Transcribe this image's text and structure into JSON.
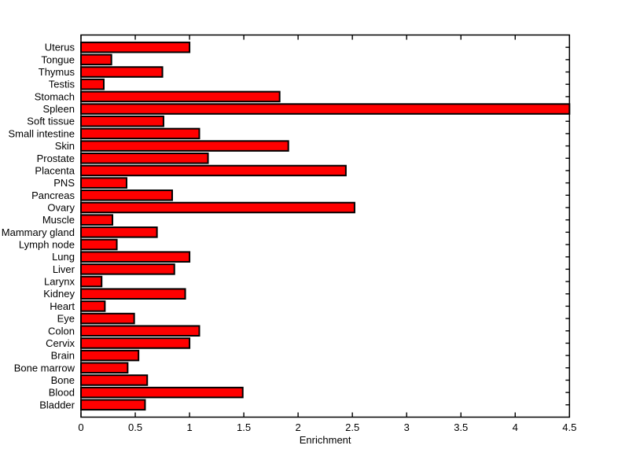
{
  "figure": {
    "background_color": "#ffffff"
  },
  "chart_data": {
    "type": "bar",
    "orientation": "horizontal",
    "title": "",
    "xlabel": "Enrichment",
    "ylabel": "",
    "xlim": [
      0,
      4.5
    ],
    "x_ticks": [
      0,
      0.5,
      1,
      1.5,
      2,
      2.5,
      3,
      3.5,
      4,
      4.5
    ],
    "x_tick_labels": [
      "0",
      "0.5",
      "1",
      "1.5",
      "2",
      "2.5",
      "3",
      "3.5",
      "4",
      "4.5"
    ],
    "grid": false,
    "legend": null,
    "bar_color": "#ff0000",
    "bar_edge_color": "#000000",
    "axis_color": "#000000",
    "categories": [
      "Uterus",
      "Tongue",
      "Thymus",
      "Testis",
      "Stomach",
      "Spleen",
      "Soft tissue",
      "Small intestine",
      "Skin",
      "Prostate",
      "Placenta",
      "PNS",
      "Pancreas",
      "Ovary",
      "Muscle",
      "Mammary gland",
      "Lymph node",
      "Lung",
      "Liver",
      "Larynx",
      "Kidney",
      "Heart",
      "Eye",
      "Colon",
      "Cervix",
      "Brain",
      "Bone marrow",
      "Bone",
      "Blood",
      "Bladder"
    ],
    "values": [
      1.0,
      0.28,
      0.75,
      0.21,
      1.83,
      4.5,
      0.76,
      1.09,
      1.91,
      1.17,
      2.44,
      0.42,
      0.84,
      2.52,
      0.29,
      0.7,
      0.33,
      1.0,
      0.86,
      0.19,
      0.96,
      0.22,
      0.49,
      1.09,
      1.0,
      0.53,
      0.43,
      0.61,
      1.49,
      0.59
    ]
  }
}
